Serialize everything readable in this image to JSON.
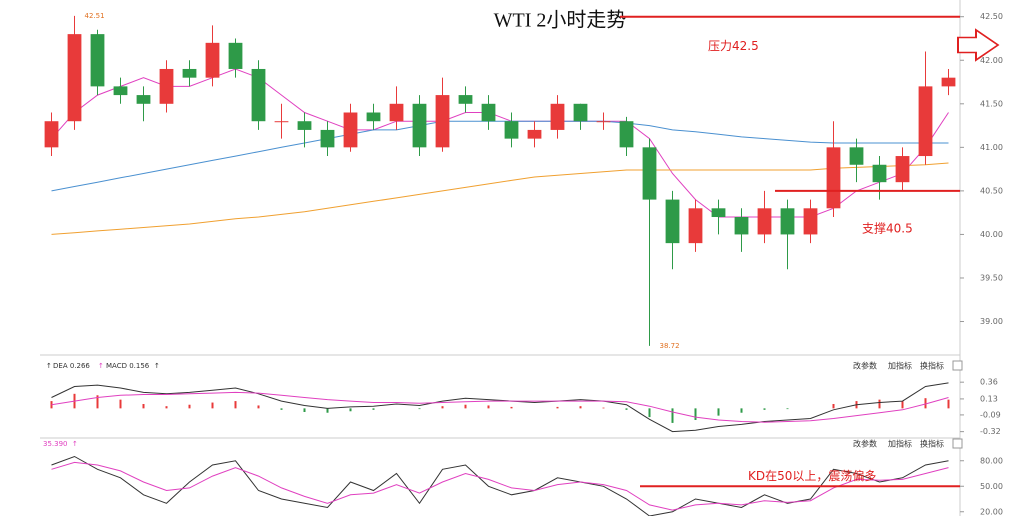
{
  "toolbar": [
    "改参数",
    "加指标",
    "换指标"
  ],
  "chart_data": [
    {
      "type": "candlestick",
      "title": "WTI 2小时走势",
      "open": [
        41.0,
        41.3,
        42.3,
        41.7,
        41.6,
        41.5,
        41.9,
        41.8,
        42.2,
        41.9,
        41.3,
        41.3,
        41.2,
        41.0,
        41.4,
        41.3,
        41.5,
        41.0,
        41.6,
        41.5,
        41.3,
        41.1,
        41.2,
        41.5,
        41.3,
        41.3,
        41.0,
        40.4,
        39.9,
        40.3,
        40.2,
        40.0,
        40.3,
        40.0,
        40.3,
        41.0,
        40.8,
        40.6,
        40.9,
        41.7
      ],
      "high": [
        41.4,
        42.51,
        42.35,
        41.8,
        41.7,
        42.0,
        42.0,
        42.4,
        42.25,
        42.0,
        41.5,
        41.4,
        41.3,
        41.5,
        41.5,
        41.7,
        41.6,
        41.8,
        41.7,
        41.6,
        41.4,
        41.3,
        41.6,
        41.5,
        41.4,
        41.35,
        41.1,
        40.5,
        40.4,
        40.4,
        40.3,
        40.5,
        40.4,
        40.4,
        41.3,
        41.1,
        40.9,
        41.0,
        42.1,
        41.9
      ],
      "low": [
        40.9,
        41.2,
        41.6,
        41.5,
        41.3,
        41.4,
        41.7,
        41.7,
        41.8,
        41.2,
        41.1,
        41.0,
        40.9,
        40.95,
        41.2,
        41.2,
        40.9,
        40.95,
        41.4,
        41.2,
        41.0,
        41.0,
        41.1,
        41.2,
        41.2,
        40.9,
        38.72,
        39.6,
        39.8,
        40.0,
        39.8,
        39.9,
        39.6,
        39.9,
        40.2,
        40.6,
        40.4,
        40.5,
        40.8,
        41.6
      ],
      "close": [
        41.3,
        42.3,
        41.7,
        41.6,
        41.5,
        41.9,
        41.8,
        42.2,
        41.9,
        41.3,
        41.3,
        41.2,
        41.0,
        41.4,
        41.3,
        41.5,
        41.0,
        41.6,
        41.5,
        41.3,
        41.1,
        41.2,
        41.5,
        41.3,
        41.3,
        41.0,
        40.4,
        39.9,
        40.3,
        40.2,
        40.0,
        40.3,
        40.0,
        40.3,
        41.0,
        40.8,
        40.6,
        40.9,
        41.7,
        41.8
      ],
      "up_color": "#e83a3a",
      "down_color": "#2e9a48",
      "series": [
        {
          "color": "#e040c0",
          "values": [
            41.1,
            41.4,
            41.6,
            41.7,
            41.8,
            41.7,
            41.7,
            41.8,
            41.9,
            41.8,
            41.6,
            41.4,
            41.3,
            41.2,
            41.2,
            41.3,
            41.3,
            41.3,
            41.4,
            41.4,
            41.3,
            41.3,
            41.3,
            41.3,
            41.3,
            41.3,
            41.1,
            40.7,
            40.4,
            40.2,
            40.2,
            40.2,
            40.2,
            40.2,
            40.3,
            40.5,
            40.6,
            40.7,
            41.0,
            41.4
          ]
        },
        {
          "color": "#4a90d0",
          "values": [
            40.5,
            40.55,
            40.6,
            40.65,
            40.7,
            40.75,
            40.8,
            40.85,
            40.9,
            40.95,
            41.0,
            41.05,
            41.1,
            41.15,
            41.2,
            41.2,
            41.25,
            41.3,
            41.3,
            41.3,
            41.3,
            41.3,
            41.3,
            41.3,
            41.3,
            41.28,
            41.25,
            41.2,
            41.18,
            41.15,
            41.12,
            41.1,
            41.08,
            41.06,
            41.05,
            41.05,
            41.05,
            41.05,
            41.05,
            41.05
          ]
        },
        {
          "color": "#f0a030",
          "values": [
            40.0,
            40.02,
            40.04,
            40.06,
            40.08,
            40.1,
            40.12,
            40.15,
            40.18,
            40.2,
            40.23,
            40.26,
            40.3,
            40.34,
            40.38,
            40.42,
            40.46,
            40.5,
            40.54,
            40.58,
            40.62,
            40.66,
            40.68,
            40.7,
            40.72,
            40.74,
            40.74,
            40.74,
            40.74,
            40.74,
            40.74,
            40.74,
            40.74,
            40.74,
            40.76,
            40.77,
            40.78,
            40.79,
            40.8,
            40.82
          ]
        }
      ],
      "ylim": [
        38.65,
        42.6
      ],
      "yticks": [
        {
          "value": 39,
          "label": "39.00"
        },
        {
          "value": 39.5,
          "label": "39.50"
        },
        {
          "value": 40,
          "label": "40.00"
        },
        {
          "value": 40.5,
          "label": "40.50"
        },
        {
          "value": 41,
          "label": "41.00"
        },
        {
          "value": 41.5,
          "label": "41.50"
        },
        {
          "value": 42,
          "label": "42.00"
        },
        {
          "value": 42.5,
          "label": "42.50"
        }
      ],
      "extremes": [
        {
          "index": 1,
          "label": "42.51"
        },
        {
          "index": 26,
          "label": "38.72"
        }
      ],
      "ref_lines": [
        {
          "value": 42.5,
          "label": "压力42.5",
          "color": "#e02020"
        },
        {
          "value": 40.5,
          "label": "支撑40.5",
          "color": "#e02020"
        }
      ]
    },
    {
      "type": "macd",
      "header": [
        "DEA 0.266",
        "MACD 0.156"
      ],
      "bars": [
        0.1,
        0.2,
        0.18,
        0.12,
        0.06,
        0.03,
        0.05,
        0.08,
        0.1,
        0.04,
        -0.02,
        -0.05,
        -0.06,
        -0.04,
        -0.02,
        0.0,
        -0.01,
        0.03,
        0.05,
        0.04,
        0.02,
        0.0,
        0.02,
        0.03,
        0.01,
        -0.02,
        -0.12,
        -0.2,
        -0.16,
        -0.1,
        -0.06,
        -0.02,
        -0.01,
        0.0,
        0.06,
        0.1,
        0.12,
        0.1,
        0.14,
        0.12
      ],
      "up_color": "#e83a3a",
      "down_color": "#2e9a48",
      "series": [
        {
          "color": "#333333",
          "values": [
            0.15,
            0.3,
            0.32,
            0.28,
            0.22,
            0.2,
            0.22,
            0.25,
            0.28,
            0.2,
            0.1,
            0.04,
            0.0,
            0.02,
            0.03,
            0.06,
            0.04,
            0.1,
            0.14,
            0.12,
            0.1,
            0.08,
            0.1,
            0.12,
            0.1,
            0.05,
            -0.15,
            -0.32,
            -0.3,
            -0.25,
            -0.22,
            -0.18,
            -0.16,
            -0.14,
            -0.02,
            0.05,
            0.08,
            0.1,
            0.3,
            0.35
          ]
        },
        {
          "color": "#e040c0",
          "values": [
            0.05,
            0.1,
            0.15,
            0.18,
            0.19,
            0.19,
            0.2,
            0.21,
            0.22,
            0.21,
            0.18,
            0.15,
            0.12,
            0.1,
            0.08,
            0.08,
            0.07,
            0.08,
            0.09,
            0.1,
            0.1,
            0.1,
            0.1,
            0.1,
            0.1,
            0.09,
            0.03,
            -0.05,
            -0.12,
            -0.16,
            -0.18,
            -0.19,
            -0.18,
            -0.17,
            -0.14,
            -0.1,
            -0.06,
            -0.02,
            0.06,
            0.15
          ]
        }
      ],
      "ylim": [
        -0.38,
        0.5
      ],
      "yticks": [
        -0.32,
        -0.09,
        0.13,
        0.36
      ]
    },
    {
      "type": "kd",
      "header": [
        "35.390"
      ],
      "series": [
        {
          "color": "#333333",
          "values": [
            75,
            85,
            70,
            60,
            40,
            30,
            55,
            75,
            80,
            45,
            35,
            30,
            25,
            55,
            45,
            65,
            30,
            70,
            75,
            50,
            40,
            45,
            60,
            55,
            50,
            35,
            15,
            20,
            35,
            30,
            25,
            40,
            30,
            35,
            70,
            65,
            55,
            60,
            75,
            80
          ]
        },
        {
          "color": "#e040c0",
          "values": [
            70,
            78,
            75,
            68,
            55,
            45,
            48,
            62,
            72,
            62,
            48,
            38,
            30,
            40,
            42,
            52,
            42,
            55,
            65,
            58,
            48,
            45,
            52,
            55,
            52,
            45,
            28,
            22,
            28,
            30,
            28,
            33,
            31,
            33,
            48,
            58,
            57,
            58,
            65,
            72
          ]
        }
      ],
      "ylim": [
        15,
        95
      ],
      "yticks": [
        {
          "value": 20,
          "label": "20.00"
        },
        {
          "value": 50,
          "label": "50.00"
        },
        {
          "value": 80,
          "label": "80.00"
        }
      ],
      "ref_lines": [
        {
          "value": 50,
          "label": "KD在50以上，震荡偏多",
          "color": "#e02020"
        }
      ]
    }
  ]
}
